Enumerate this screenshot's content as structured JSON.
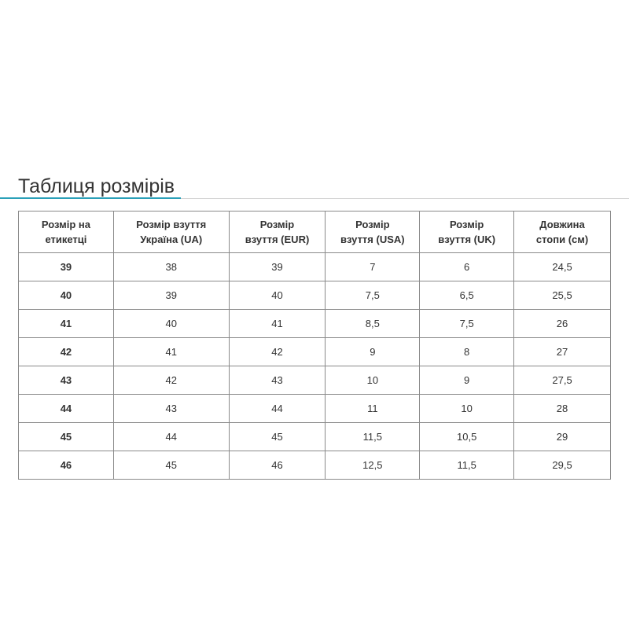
{
  "title": "Таблиця розмірів",
  "colors": {
    "accent": "#2aa0b8",
    "border": "#8a8a8a",
    "text": "#333333"
  },
  "table": {
    "headers": [
      [
        "Розмір на",
        "етикетці"
      ],
      [
        "Розмір взуття",
        "Україна (UA)"
      ],
      [
        "Розмір",
        "взуття (EUR)"
      ],
      [
        "Розмір",
        "взуття (USA)"
      ],
      [
        "Розмір",
        "взуття (UK)"
      ],
      [
        "Довжина",
        "стопи (см)"
      ]
    ],
    "rows": [
      [
        "39",
        "38",
        "39",
        "7",
        "6",
        "24,5"
      ],
      [
        "40",
        "39",
        "40",
        "7,5",
        "6,5",
        "25,5"
      ],
      [
        "41",
        "40",
        "41",
        "8,5",
        "7,5",
        "26"
      ],
      [
        "42",
        "41",
        "42",
        "9",
        "8",
        "27"
      ],
      [
        "43",
        "42",
        "43",
        "10",
        "9",
        "27,5"
      ],
      [
        "44",
        "43",
        "44",
        "11",
        "10",
        "28"
      ],
      [
        "45",
        "44",
        "45",
        "11,5",
        "10,5",
        "29"
      ],
      [
        "46",
        "45",
        "46",
        "12,5",
        "11,5",
        "29,5"
      ]
    ]
  }
}
